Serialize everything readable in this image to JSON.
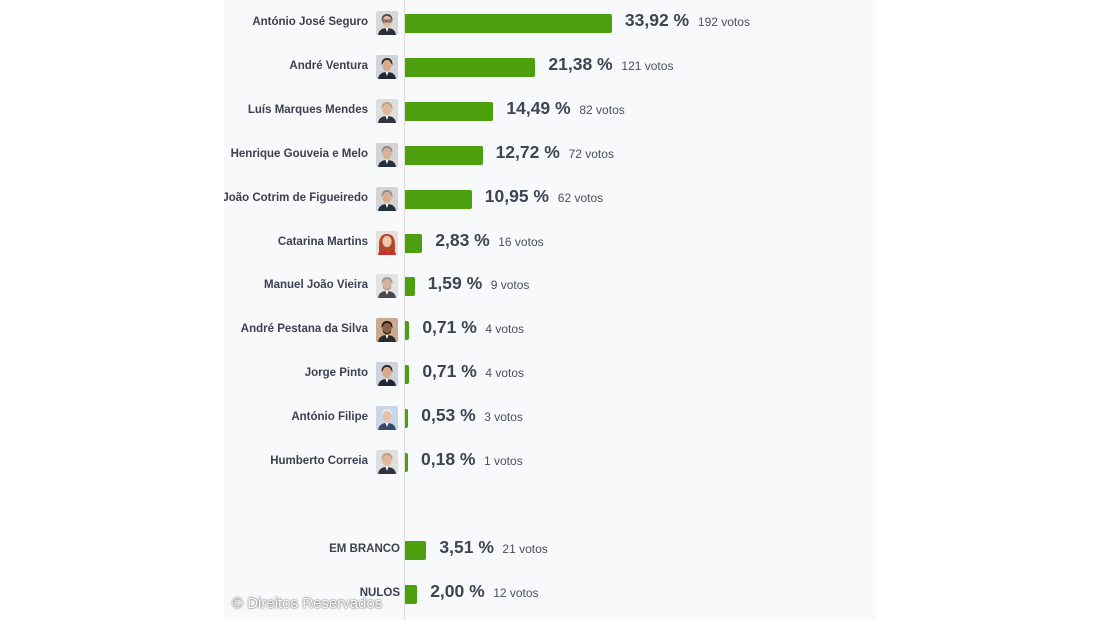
{
  "chart_data": {
    "type": "bar",
    "orientation": "horizontal",
    "candidates": [
      {
        "name": "António José Seguro",
        "percent": 33.92,
        "percent_label": "33,92 %",
        "votes": 192,
        "votes_label": "192 votos",
        "avatar": "portrait-man-glasses"
      },
      {
        "name": "André Ventura",
        "percent": 21.38,
        "percent_label": "21,38 %",
        "votes": 121,
        "votes_label": "121 votos",
        "avatar": "portrait-man-dark-hair"
      },
      {
        "name": "Luís Marques Mendes",
        "percent": 14.49,
        "percent_label": "14,49 %",
        "votes": 82,
        "votes_label": "82 votos",
        "avatar": "portrait-man-bald"
      },
      {
        "name": "Henrique Gouveia e Melo",
        "percent": 12.72,
        "percent_label": "12,72 %",
        "votes": 72,
        "votes_label": "72 votos",
        "avatar": "portrait-man-grey-hair"
      },
      {
        "name": "João Cotrim de Figueiredo",
        "percent": 10.95,
        "percent_label": "10,95 %",
        "votes": 62,
        "votes_label": "62 votos",
        "avatar": "portrait-man-grey-hair"
      },
      {
        "name": "Catarina Martins",
        "percent": 2.83,
        "percent_label": "2,83 %",
        "votes": 16,
        "votes_label": "16 votos",
        "avatar": "portrait-woman-red-hair"
      },
      {
        "name": "Manuel João Vieira",
        "percent": 1.59,
        "percent_label": "1,59 %",
        "votes": 9,
        "votes_label": "9 votos",
        "avatar": "portrait-man-beard"
      },
      {
        "name": "André Pestana da Silva",
        "percent": 0.71,
        "percent_label": "0,71 %",
        "votes": 4,
        "votes_label": "4 votos",
        "avatar": "portrait-man-dark"
      },
      {
        "name": "Jorge Pinto",
        "percent": 0.71,
        "percent_label": "0,71 %",
        "votes": 4,
        "votes_label": "4 votos",
        "avatar": "portrait-man-dark-hair"
      },
      {
        "name": "António Filipe",
        "percent": 0.53,
        "percent_label": "0,53 %",
        "votes": 3,
        "votes_label": "3 votos",
        "avatar": "portrait-man-white-hair"
      },
      {
        "name": "Humberto Correia",
        "percent": 0.18,
        "percent_label": "0,18 %",
        "votes": 1,
        "votes_label": "1 votos",
        "avatar": "portrait-man-bald"
      }
    ],
    "other": [
      {
        "name": "EM BRANCO",
        "percent": 3.51,
        "percent_label": "3,51 %",
        "votes": 21,
        "votes_label": "21 votos"
      },
      {
        "name": "NULOS",
        "percent": 2.0,
        "percent_label": "2,00 %",
        "votes": 12,
        "votes_label": "12 votos"
      }
    ],
    "xlim": [
      0,
      100
    ],
    "grid": false,
    "bar_color": "#4da00d"
  },
  "watermark": "© Direitos Reservados"
}
